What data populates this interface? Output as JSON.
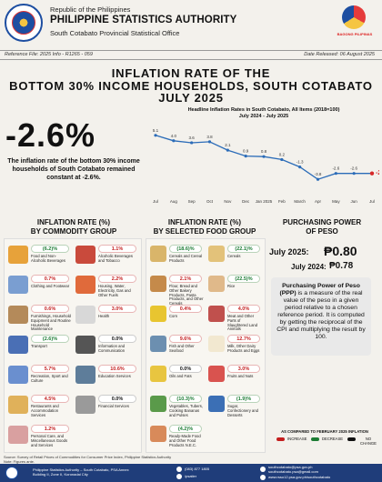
{
  "header": {
    "republic": "Republic of the Philippines",
    "agency": "PHILIPPINE STATISTICS AUTHORITY",
    "office": "South Cotabato Provincial Statistical Office",
    "bp_logo_text": "BAGONG PILIPINAS"
  },
  "reference": {
    "ref_file": "Reference File: 2025 Info - R1265 - 059",
    "date_released": "Date Released: 06 August 2025"
  },
  "title": {
    "line1": "INFLATION RATE OF THE",
    "line2": "BOTTOM 30% INCOME HOUSEHOLDS, SOUTH COTABATO",
    "line3": "JULY 2025"
  },
  "headline": {
    "rate": "-2.6%",
    "description": "The inflation rate of the bottom 30% income households of South Cotabato remained constant at -2.6%."
  },
  "chart_data": {
    "type": "line",
    "title": "Headline Inflation Rates in South Cotabato, All Items (2018=100)",
    "subtitle": "July 2024 - July 2025",
    "categories": [
      "Jul",
      "Aug",
      "Sep",
      "Oct",
      "Nov",
      "Dec",
      "Jan 2025",
      "Feb",
      "March",
      "Apr",
      "May",
      "Jun",
      "Jul"
    ],
    "values": [
      5.1,
      4.0,
      3.6,
      3.8,
      2.1,
      0.9,
      0.8,
      0.2,
      -1.3,
      -3.8,
      -2.6,
      -2.6,
      -2.6
    ],
    "labels": [
      "5.1",
      "4.0",
      "3.6",
      "3.8",
      "2.1",
      "0.9",
      "0.8",
      "0.2",
      "-1.3",
      "-3.8",
      "-2.6",
      "-2.6",
      "-2.6"
    ],
    "line_color": "#2b6cb8",
    "highlight_color": "#d62828"
  },
  "commodity": {
    "heading": "INFLATION RATE (%)\nBY COMMODITY GROUP",
    "items": [
      {
        "value": "(6.2)%",
        "label": "Food and Non-Alcoholic Beverages",
        "dir": "down",
        "icon": "food-basket-icon",
        "color": "#e7a23a"
      },
      {
        "value": "1.1%",
        "label": "Alcoholic Beverages and Tobacco",
        "dir": "up",
        "icon": "beverage-icon",
        "color": "#c94a3c"
      },
      {
        "value": "0.7%",
        "label": "Clothing and Footwear",
        "dir": "up",
        "icon": "clothing-icon",
        "color": "#7a9ed1"
      },
      {
        "value": "2.2%",
        "label": "Housing, Water, Electricity, Gas and Other Fuels",
        "dir": "up",
        "icon": "gas-tank-icon",
        "color": "#e06a3b"
      },
      {
        "value": "0.6%",
        "label": "Furnishings, Household Equipment and Routine Household Maintenance",
        "dir": "up",
        "icon": "furniture-icon",
        "color": "#b48a5a"
      },
      {
        "value": "3.0%",
        "label": "Health",
        "dir": "up",
        "icon": "health-icon",
        "color": "#d8d8d8"
      },
      {
        "value": "(2.6)%",
        "label": "Transport",
        "dir": "down",
        "icon": "car-icon",
        "color": "#4a6fb5"
      },
      {
        "value": "0.0%",
        "label": "Information and Communication",
        "dir": "nc",
        "icon": "laptop-icon",
        "color": "#555555"
      },
      {
        "value": "5.7%",
        "label": "Recreation, Sport and Culture",
        "dir": "up",
        "icon": "sports-icon",
        "color": "#6a8fcf"
      },
      {
        "value": "10.6%",
        "label": "Education Services",
        "dir": "up",
        "icon": "education-icon",
        "color": "#5e7d9a"
      },
      {
        "value": "4.5%",
        "label": "Restaurants and Accommodation Services",
        "dir": "up",
        "icon": "restaurant-icon",
        "color": "#e0b15a"
      },
      {
        "value": "0.0%",
        "label": "Financial Services",
        "dir": "nc",
        "icon": "bank-icon",
        "color": "#9a9a9a"
      },
      {
        "value": "1.2%",
        "label": "Personal Care, and Miscellaneous Goods and Services",
        "dir": "up",
        "icon": "salon-icon",
        "color": "#d9a0a0"
      }
    ]
  },
  "food": {
    "heading": "INFLATION RATE (%)\nBY SELECTED FOOD GROUP",
    "items": [
      {
        "value": "(18.6)%",
        "label": "Cereals and Cereal Products",
        "dir": "down",
        "icon": "cereal-icon",
        "color": "#d9b56a"
      },
      {
        "value": "(22.1)%",
        "label": "Cereals",
        "dir": "down",
        "icon": "grain-icon",
        "color": "#e3c27a"
      },
      {
        "value": "2.1%",
        "label": "Flour, Bread and Other Bakery Products, Pasta Products, and Other Cereals",
        "dir": "up",
        "icon": "bread-icon",
        "color": "#c58a4a"
      },
      {
        "value": "(22.5)%",
        "label": "Rice",
        "dir": "down",
        "icon": "rice-icon",
        "color": "#e0b98a"
      },
      {
        "value": "0.4%",
        "label": "Corn",
        "dir": "up",
        "icon": "corn-icon",
        "color": "#e8c530"
      },
      {
        "value": "4.0%",
        "label": "Meat and Other Parts of Slaughtered Land Animals",
        "dir": "up",
        "icon": "meat-icon",
        "color": "#c0504d"
      },
      {
        "value": "9.6%",
        "label": "Fish and Other Seafood",
        "dir": "up",
        "icon": "fish-icon",
        "color": "#6c8fb0"
      },
      {
        "value": "12.7%",
        "label": "Milk, Other Dairy Products and Eggs",
        "dir": "up",
        "icon": "milk-icon",
        "color": "#f2e8d0"
      },
      {
        "value": "0.0%",
        "label": "Oils and Fats",
        "dir": "nc",
        "icon": "oil-icon",
        "color": "#e8c540"
      },
      {
        "value": "3.0%",
        "label": "Fruits and Nuts",
        "dir": "up",
        "icon": "fruits-icon",
        "color": "#d9534f"
      },
      {
        "value": "(10.3)%",
        "label": "Vegetables, Tubers, Cooking Bananas and Pulses",
        "dir": "down",
        "icon": "vegetables-icon",
        "color": "#5a9a4a"
      },
      {
        "value": "(1.9)%",
        "label": "Sugar, Confectionery and Desserts",
        "dir": "down",
        "icon": "sugar-icon",
        "color": "#3b6fb5"
      },
      {
        "value": "(4.2)%",
        "label": "Ready-Made Food and Other Food Products N.E.C.",
        "dir": "down",
        "icon": "ready-food-icon",
        "color": "#d88a5a"
      }
    ]
  },
  "ppp": {
    "heading": "PURCHASING POWER\nOF PESO",
    "july2025_label": "July 2025:",
    "july2025_value": "₱0.80",
    "july2024_label": "July 2024:",
    "july2024_value": "₱0.78",
    "definition_bold": "Purchasing Power of Peso (PPP)",
    "definition_rest": " is a measure of the real value of the peso in a given period relative to a chosen reference period. It is computed by getting the reciprocal of the CPI and multiplying the result by 100."
  },
  "legend": {
    "title": "AS COMPARED TO FEBRUARY 2025 INFLATION",
    "increase": "INCREASE",
    "decrease": "DECREASE",
    "no_change": "NO CHANGE",
    "increase_color": "#c41e1e",
    "decrease_color": "#1c7c34",
    "nochange_color": "#111111"
  },
  "source": "Source: Survey of Retail Prices of Commodities for Consumer Price Index, Philippine Statistics Authority",
  "source2": "Note: Figures ante.",
  "footer": {
    "address1": "Philippine Statistics Authority – South Cotabato, PSA Annex",
    "address2": "Building II, Zone II, Koronadal City",
    "phone": "(083) 877 1805",
    "facebook": "/psatier",
    "email1": "southcotabato@psa.gov.ph",
    "email2": "southcotabato.psa@gmail.com",
    "website": "www.rsso12.psa.gov.ph/southcotabato"
  }
}
